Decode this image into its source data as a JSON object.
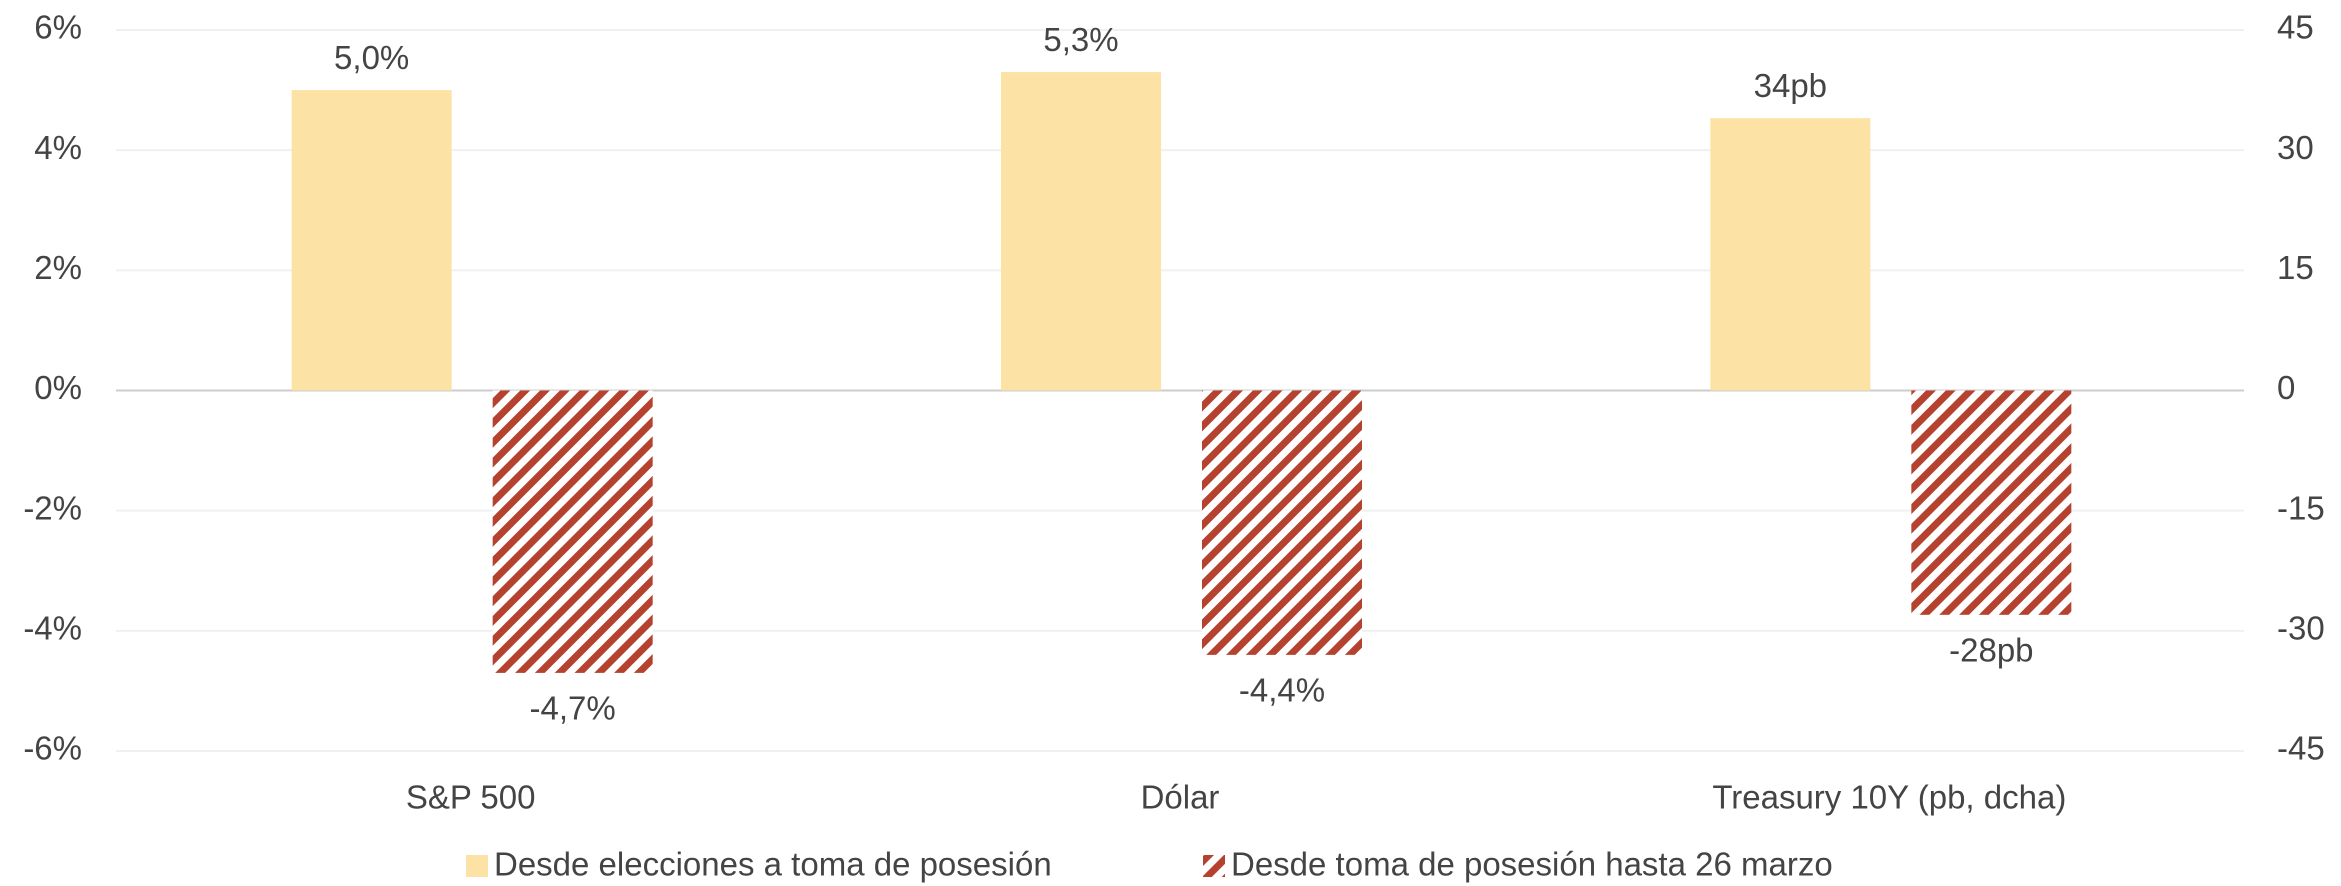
{
  "chart_data": {
    "type": "bar",
    "categories": [
      "S&P 500",
      "Dólar",
      "Treasury 10Y (pb, dcha)"
    ],
    "axes": [
      "y",
      "y",
      "y2"
    ],
    "series": [
      {
        "name": "Desde elecciones a toma de posesión",
        "color": "#fde2a6",
        "values": [
          5.0,
          5.3,
          34
        ],
        "value_labels": [
          "5,0%",
          "5,3%",
          "34pb"
        ]
      },
      {
        "name": "Desde toma de posesión hasta 26 marzo",
        "color": "#b5412f",
        "pattern": "hatch",
        "values": [
          -4.7,
          -4.4,
          -28
        ],
        "value_labels": [
          "-4,7%",
          "-4,4%",
          "-28pb"
        ]
      }
    ],
    "ylim": [
      -6,
      6
    ],
    "yticks": [
      {
        "value": -6,
        "label": "-6%"
      },
      {
        "value": -4,
        "label": "-4%"
      },
      {
        "value": -2,
        "label": "-2%"
      },
      {
        "value": 0,
        "label": "0%"
      },
      {
        "value": 2,
        "label": "2%"
      },
      {
        "value": 4,
        "label": "4%"
      },
      {
        "value": 6,
        "label": "6%"
      }
    ],
    "y2lim": [
      -45,
      45
    ],
    "y2ticks": [
      -45,
      -30,
      -15,
      0,
      15,
      30,
      45
    ],
    "grid": true,
    "legend": "bottom"
  }
}
